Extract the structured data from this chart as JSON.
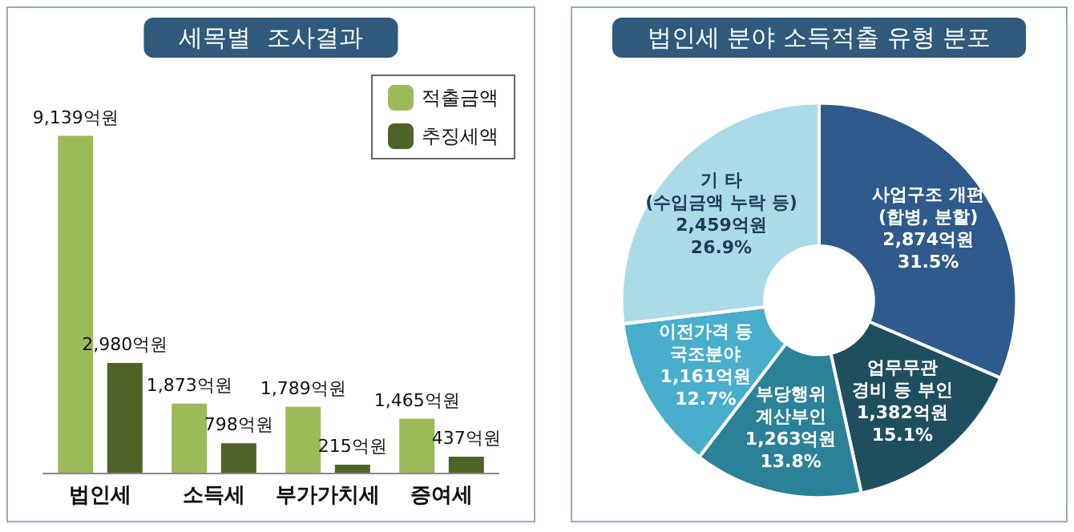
{
  "chart_data": [
    {
      "type": "bar",
      "title": "세목별  조사결과",
      "categories": [
        "법인세",
        "소득세",
        "부가가치세",
        "증여세"
      ],
      "series": [
        {
          "name": "적출금액",
          "color": "#9bbb59",
          "values": [
            9139,
            1873,
            1789,
            1465
          ],
          "value_labels": [
            "9,139억원",
            "1,873억원",
            "1,789억원",
            "1,465억원"
          ]
        },
        {
          "name": "추징세액",
          "color": "#4f6228",
          "values": [
            2980,
            798,
            215,
            437
          ],
          "value_labels": [
            "2,980억원",
            "798억원",
            "215억원",
            "437억원"
          ]
        }
      ],
      "legend": "top right",
      "tick_labels": "x"
    },
    {
      "type": "donut",
      "title": "법인세 분야 소득적출 유형 분포",
      "categories": [
        "사업구조 개편\n(합병, 분할)",
        "업무무관\n경비 등 부인",
        "부당행위\n계산부인",
        "이전가격 등\n국조분야",
        "기 타\n(수입금액 누락 등)"
      ],
      "values": [
        2874,
        1382,
        1263,
        1161,
        2459
      ],
      "colors": [
        "#2e5b8c",
        "#1f4f5f",
        "#2b8198",
        "#48aecb",
        "#acdbe8"
      ],
      "value_labels": [
        "2,874억원\n31.5%",
        "1,382억원\n15.1%",
        "1,263억원\n13.8%",
        "1,161억원\n12.7%",
        "2,459억원\n26.9%"
      ]
    }
  ]
}
